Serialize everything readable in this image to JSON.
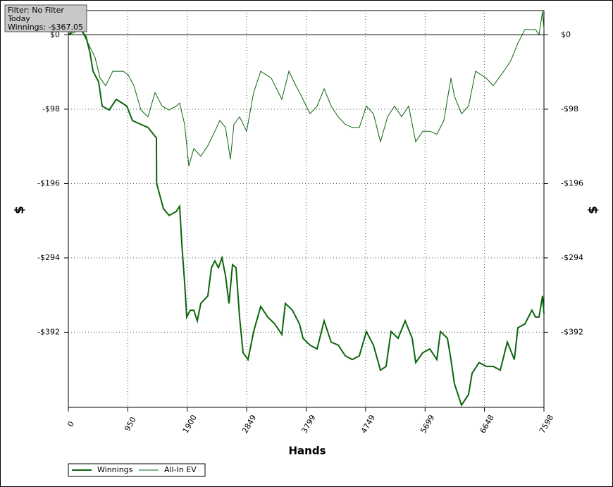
{
  "chart_data": {
    "type": "line",
    "filter_box": [
      "Filter: No Filter",
      "Today",
      "Winnings: -$367.05"
    ],
    "xlabel": "Hands",
    "ylabel": "$",
    "y2label": "$",
    "xlim": [
      0,
      7598
    ],
    "xticks": [
      0,
      950,
      1900,
      2849,
      3799,
      4749,
      5699,
      6648,
      7598
    ],
    "ylim": [
      -491,
      32
    ],
    "yticks": [
      {
        "value": 0,
        "label": "$0"
      },
      {
        "value": -98,
        "label": "-$98"
      },
      {
        "value": -196,
        "label": "-$196"
      },
      {
        "value": -294,
        "label": "-$294"
      },
      {
        "value": -392,
        "label": "-$392"
      }
    ],
    "grid": true,
    "legend": "bottom-left",
    "series": [
      {
        "name": "Winnings",
        "color": "#0b650b",
        "x": [
          0,
          90,
          203,
          281,
          349,
          394,
          484,
          540,
          653,
          765,
          934,
          1024,
          1159,
          1272,
          1407,
          1410,
          1520,
          1610,
          1722,
          1778,
          1812,
          1857,
          1891,
          1947,
          2004,
          2060,
          2116,
          2229,
          2285,
          2341,
          2398,
          2454,
          2510,
          2566,
          2623,
          2679,
          2735,
          2791,
          2870,
          2960,
          3073,
          3185,
          3298,
          3411,
          3467,
          3579,
          3692,
          3748,
          3861,
          3974,
          4086,
          4199,
          4311,
          4424,
          4536,
          4649,
          4761,
          4874,
          4987,
          5076,
          5155,
          5268,
          5380,
          5493,
          5549,
          5662,
          5774,
          5887,
          5943,
          6056,
          6112,
          6168,
          6281,
          6394,
          6450,
          6562,
          6675,
          6787,
          6900,
          7013,
          7125,
          7181,
          7294,
          7406,
          7463,
          7519,
          7575,
          7598
        ],
        "values": [
          0,
          7,
          6,
          -2,
          -25,
          -48,
          -62,
          -94,
          -99,
          -85,
          -94,
          -113,
          -118,
          -122,
          -136,
          -196,
          -229,
          -238,
          -233,
          -226,
          -275,
          -326,
          -372,
          -363,
          -363,
          -377,
          -354,
          -344,
          -307,
          -298,
          -307,
          -294,
          -317,
          -354,
          -303,
          -307,
          -372,
          -419,
          -428,
          -391,
          -358,
          -372,
          -381,
          -395,
          -354,
          -363,
          -381,
          -400,
          -409,
          -414,
          -377,
          -405,
          -409,
          -423,
          -428,
          -423,
          -391,
          -409,
          -442,
          -437,
          -391,
          -400,
          -377,
          -400,
          -432,
          -419,
          -414,
          -428,
          -391,
          -400,
          -428,
          -460,
          -488,
          -474,
          -446,
          -432,
          -437,
          -437,
          -442,
          -405,
          -428,
          -386,
          -381,
          -363,
          -372,
          -372,
          -344,
          -367.05
        ]
      },
      {
        "name": "All-In EV",
        "color": "#0b650b",
        "x": [
          0,
          90,
          203,
          315,
          428,
          507,
          597,
          709,
          878,
          957,
          1047,
          1159,
          1272,
          1384,
          1497,
          1610,
          1722,
          1778,
          1857,
          1925,
          2004,
          2116,
          2229,
          2341,
          2420,
          2510,
          2589,
          2645,
          2735,
          2848,
          2960,
          3073,
          3242,
          3411,
          3523,
          3636,
          3748,
          3861,
          3974,
          4086,
          4199,
          4311,
          4424,
          4536,
          4649,
          4761,
          4874,
          4987,
          5099,
          5212,
          5324,
          5437,
          5549,
          5662,
          5774,
          5887,
          5999,
          6112,
          6168,
          6281,
          6394,
          6506,
          6675,
          6787,
          6956,
          7069,
          7181,
          7294,
          7463,
          7519,
          7575,
          7598
        ],
        "values": [
          0,
          3,
          7,
          -11,
          -30,
          -57,
          -67,
          -48,
          -48,
          -53,
          -67,
          -99,
          -108,
          -76,
          -94,
          -99,
          -94,
          -90,
          -118,
          -173,
          -150,
          -160,
          -146,
          -127,
          -113,
          -122,
          -164,
          -118,
          -108,
          -127,
          -76,
          -48,
          -57,
          -85,
          -48,
          -67,
          -85,
          -104,
          -94,
          -71,
          -94,
          -108,
          -118,
          -122,
          -122,
          -94,
          -104,
          -141,
          -108,
          -94,
          -108,
          -94,
          -141,
          -127,
          -127,
          -131,
          -113,
          -57,
          -81,
          -104,
          -94,
          -48,
          -57,
          -67,
          -48,
          -34,
          -11,
          7,
          7,
          0,
          31,
          7
        ]
      }
    ]
  }
}
